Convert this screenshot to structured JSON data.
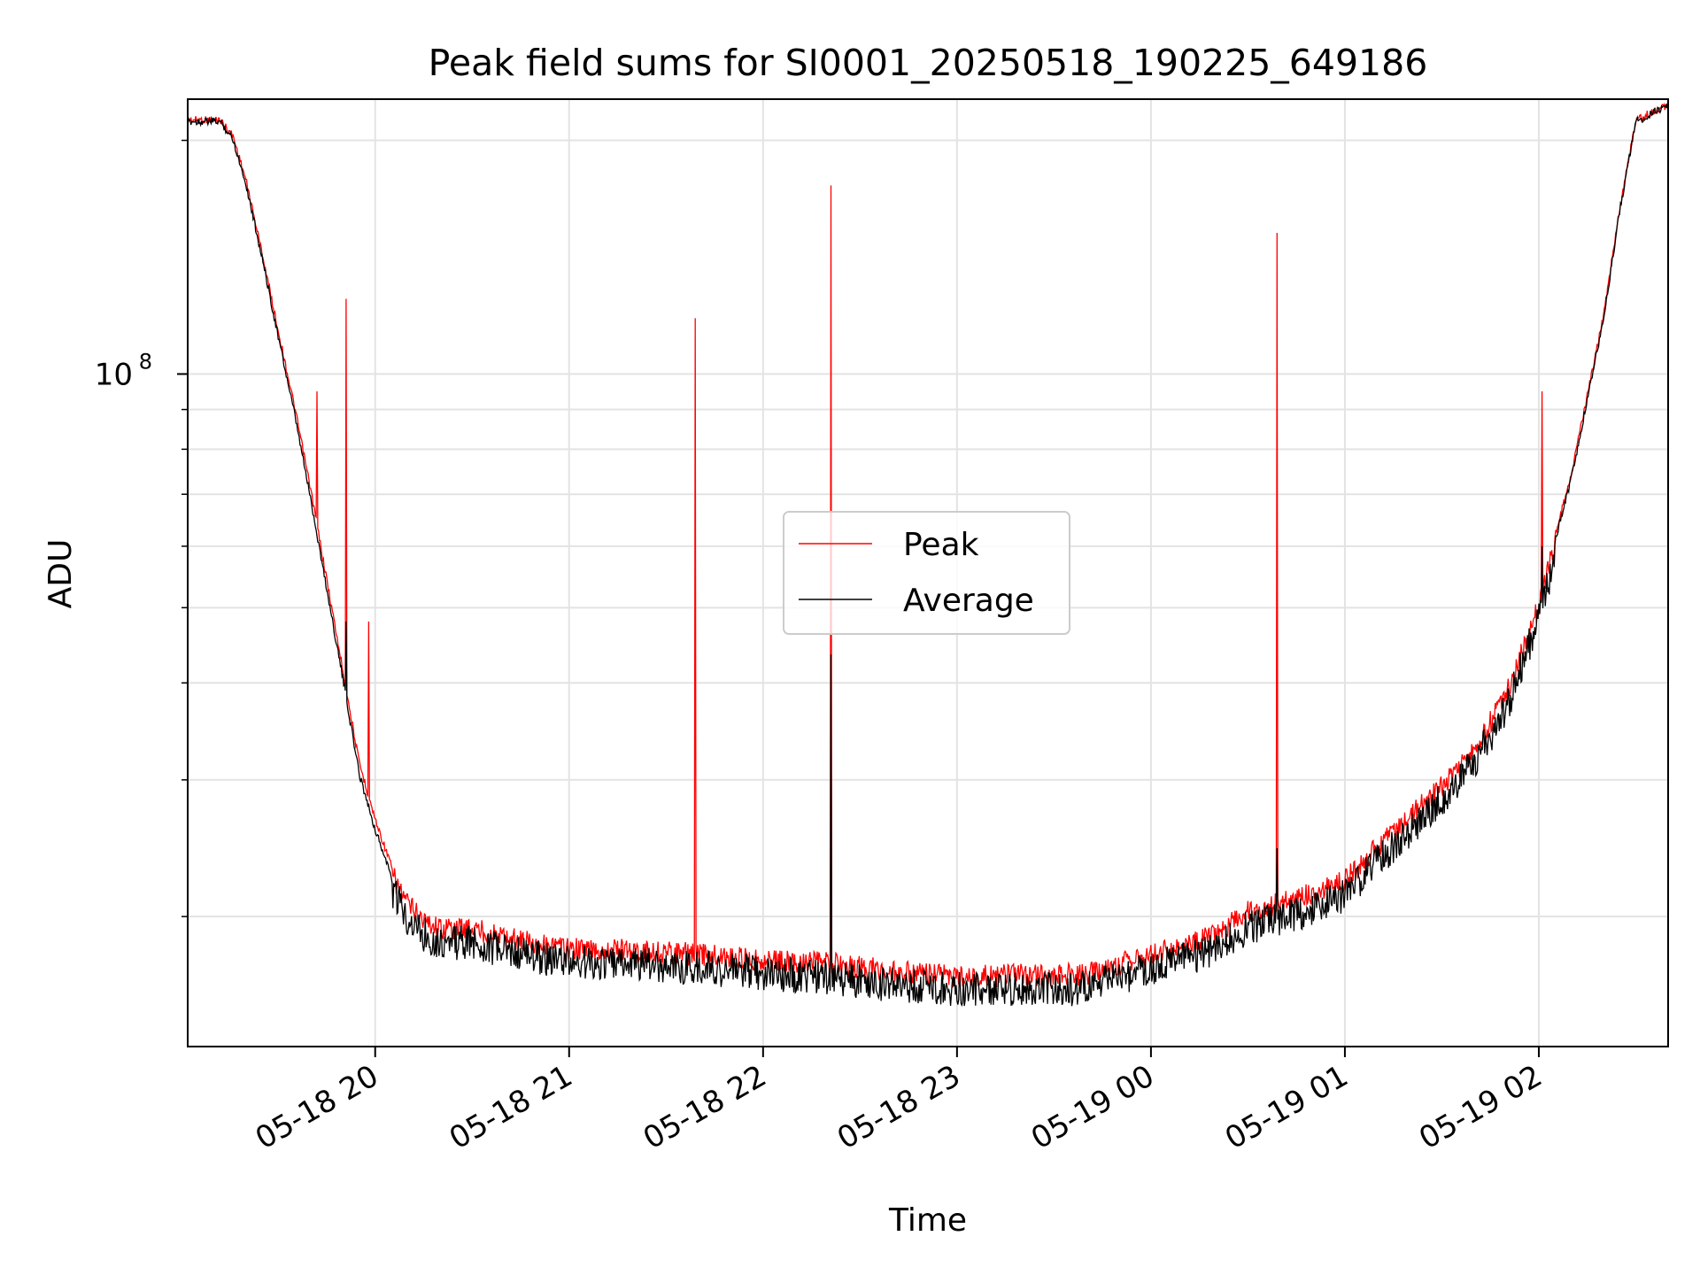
{
  "chart_data": {
    "type": "line",
    "title": "Peak field sums for SI0001_20250518_190225_649186",
    "xlabel": "Time",
    "ylabel": "ADU",
    "y_scale": "log",
    "x_range": [
      "05-18 19:02",
      "05-19 02:40"
    ],
    "y_range": [
      13600000.0,
      226000000.0
    ],
    "x_ticks": [
      {
        "t": "05-18 20:00",
        "label": "05-18 20"
      },
      {
        "t": "05-18 21:00",
        "label": "05-18 21"
      },
      {
        "t": "05-18 22:00",
        "label": "05-18 22"
      },
      {
        "t": "05-18 23:00",
        "label": "05-18 23"
      },
      {
        "t": "05-19 00:00",
        "label": "05-19 00"
      },
      {
        "t": "05-19 01:00",
        "label": "05-19 01"
      },
      {
        "t": "05-19 02:00",
        "label": "05-19 02"
      }
    ],
    "y_major_ticks": [
      {
        "value": 100000000.0,
        "base": "10",
        "exponent": "8"
      }
    ],
    "grid": true,
    "legend_position": "center",
    "series": [
      {
        "name": "Peak",
        "color": "#ff0000",
        "x": [
          "05-18 19:02",
          "05-18 19:12",
          "05-18 19:16",
          "05-18 19:20",
          "05-18 19:25",
          "05-18 19:30",
          "05-18 19:35",
          "05-18 19:40",
          "05-18 19:45",
          "05-18 19:50",
          "05-18 19:55",
          "05-18 20:00",
          "05-18 20:05",
          "05-18 20:10",
          "05-18 20:15",
          "05-18 20:20",
          "05-18 20:25",
          "05-18 20:30",
          "05-18 20:40",
          "05-18 21:00",
          "05-18 21:20",
          "05-18 21:40",
          "05-18 22:00",
          "05-18 22:20",
          "05-18 22:40",
          "05-18 23:00",
          "05-18 23:20",
          "05-18 23:40",
          "05-19 00:00",
          "05-19 00:15",
          "05-19 00:20",
          "05-19 00:30",
          "05-19 00:45",
          "05-19 01:00",
          "05-19 01:10",
          "05-19 01:20",
          "05-19 01:30",
          "05-19 01:40",
          "05-19 01:50",
          "05-19 02:00",
          "05-19 02:10",
          "05-19 02:20",
          "05-19 02:25",
          "05-19 02:30",
          "05-19 02:40"
        ],
        "values": [
          215000000.0,
          215000000.0,
          205000000.0,
          180000000.0,
          145000000.0,
          115000000.0,
          92000000.0,
          72000000.0,
          55000000.0,
          42000000.0,
          32000000.0,
          27000000.0,
          23500000.0,
          21500000.0,
          20500000.0,
          20000000.0,
          20000000.0,
          20000000.0,
          19500000.0,
          18800000.0,
          18700000.0,
          18500000.0,
          18200000.0,
          18000000.0,
          17600000.0,
          17300000.0,
          17400000.0,
          17400000.0,
          18500000.0,
          19200000.0,
          19700000.0,
          21000000.0,
          21800000.0,
          23000000.0,
          25500000.0,
          28000000.0,
          30500000.0,
          34000000.0,
          40000000.0,
          52000000.0,
          75000000.0,
          120000000.0,
          165000000.0,
          215000000.0,
          225000000.0
        ],
        "spikes": [
          {
            "x": "05-18 19:42",
            "peak": 95000000.0
          },
          {
            "x": "05-18 19:51",
            "peak": 125000000.0
          },
          {
            "x": "05-18 19:58",
            "peak": 48000000.0
          },
          {
            "x": "05-18 21:39",
            "peak": 118000000.0
          },
          {
            "x": "05-18 22:21",
            "peak": 175000000.0
          },
          {
            "x": "05-19 00:39",
            "peak": 152000000.0
          },
          {
            "x": "05-19 02:01",
            "peak": 95000000.0
          }
        ]
      },
      {
        "name": "Average",
        "color": "#000000",
        "x": [
          "05-18 19:02",
          "05-18 19:12",
          "05-18 19:16",
          "05-18 19:20",
          "05-18 19:25",
          "05-18 19:30",
          "05-18 19:35",
          "05-18 19:40",
          "05-18 19:45",
          "05-18 19:50",
          "05-18 19:55",
          "05-18 20:00",
          "05-18 20:05",
          "05-18 20:10",
          "05-18 20:15",
          "05-18 20:20",
          "05-18 20:25",
          "05-18 20:30",
          "05-18 20:40",
          "05-18 21:00",
          "05-18 21:20",
          "05-18 21:40",
          "05-18 22:00",
          "05-18 22:20",
          "05-18 22:40",
          "05-18 23:00",
          "05-18 23:20",
          "05-18 23:40",
          "05-19 00:00",
          "05-19 00:15",
          "05-19 00:20",
          "05-19 00:30",
          "05-19 00:45",
          "05-19 01:00",
          "05-19 01:10",
          "05-19 01:20",
          "05-19 01:30",
          "05-19 01:40",
          "05-19 01:50",
          "05-19 02:00",
          "05-19 02:10",
          "05-19 02:20",
          "05-19 02:25",
          "05-19 02:30",
          "05-19 02:40"
        ],
        "values": [
          214000000.0,
          214000000.0,
          203000000.0,
          178000000.0,
          143000000.0,
          113000000.0,
          90000000.0,
          70000000.0,
          53500000.0,
          41000000.0,
          31000000.0,
          26200000.0,
          22800000.0,
          21000000.0,
          20000000.0,
          19500000.0,
          19500000.0,
          19500000.0,
          19000000.0,
          18400000.0,
          18300000.0,
          18100000.0,
          17800000.0,
          17600000.0,
          17200000.0,
          17000000.0,
          17000000.0,
          17000000.0,
          18100000.0,
          18800000.0,
          19200000.0,
          20400000.0,
          21200000.0,
          22400000.0,
          24800000.0,
          27200000.0,
          29800000.0,
          33200000.0,
          39000000.0,
          51000000.0,
          74000000.0,
          119000000.0,
          164000000.0,
          214000000.0,
          224000000.0
        ],
        "spikes": [
          {
            "x": "05-18 19:51",
            "peak": 48000000.0
          },
          {
            "x": "05-18 22:21",
            "peak": 43500000.0
          },
          {
            "x": "05-19 00:39",
            "peak": 24500000.0
          },
          {
            "x": "05-19 02:01",
            "peak": 60000000.0
          }
        ]
      }
    ]
  }
}
